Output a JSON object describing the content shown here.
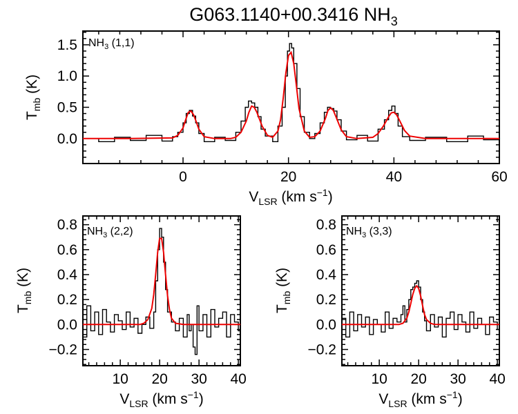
{
  "title": {
    "main": "G063.1140+00.3416 NH",
    "sub": "3"
  },
  "chart_data": [
    {
      "type": "line",
      "panel_label": {
        "main": "NH",
        "sub": "3",
        "rest": " (1,1)"
      },
      "xlabel": {
        "main": "V",
        "sub": "LSR",
        "rest": " (km s",
        "sup": "−1",
        "close": ")"
      },
      "ylabel": {
        "main": "T",
        "sub": "mb",
        "rest": " (K)"
      },
      "xlim": [
        -19,
        60
      ],
      "ylim": [
        -0.4,
        1.72
      ],
      "xticks": [
        0,
        20,
        40,
        60
      ],
      "xtick_labels": [
        "0",
        "20",
        "40",
        "60"
      ],
      "yticks": [
        0.0,
        0.5,
        1.0,
        1.5
      ],
      "ytick_labels": [
        "0.0",
        "0.5",
        "1.0",
        "1.5"
      ],
      "series": [
        {
          "kind": "observed-step",
          "color": "#000000",
          "x": [
            -19,
            -16,
            -13,
            -10,
            -7,
            -4,
            -2,
            -1,
            0,
            0.6,
            1.2,
            1.8,
            2.4,
            3,
            4,
            6,
            8,
            10,
            11,
            11.8,
            12.4,
            13,
            13.6,
            14.2,
            14.8,
            15.6,
            17,
            18,
            18.8,
            19.4,
            19.8,
            20.2,
            20.6,
            21,
            21.6,
            22.2,
            23,
            24,
            25,
            26,
            26.8,
            27.4,
            28,
            28.6,
            29.2,
            30,
            31,
            33,
            35,
            37,
            38.2,
            39,
            39.6,
            40.2,
            40.8,
            41.6,
            43,
            46,
            50,
            54,
            57,
            60
          ],
          "y": [
            0.0,
            -0.05,
            0.02,
            -0.03,
            0.05,
            -0.04,
            0.03,
            0.1,
            0.25,
            0.4,
            0.45,
            0.36,
            0.25,
            0.08,
            -0.05,
            0.02,
            -0.03,
            0.1,
            0.28,
            0.5,
            0.6,
            0.57,
            0.5,
            0.35,
            0.15,
            0.04,
            -0.05,
            0.2,
            0.5,
            1.0,
            1.4,
            1.52,
            1.45,
            1.2,
            0.8,
            0.35,
            0.1,
            0.0,
            0.08,
            0.25,
            0.42,
            0.5,
            0.48,
            0.44,
            0.3,
            0.12,
            -0.02,
            0.05,
            -0.04,
            0.15,
            0.3,
            0.45,
            0.52,
            0.4,
            0.2,
            0.03,
            -0.03,
            0.02,
            -0.05,
            0.04,
            -0.02,
            0.05
          ]
        },
        {
          "kind": "fit",
          "color": "#ee0000",
          "x": [
            -19,
            -10,
            -2,
            -1,
            0,
            0.5,
            1,
            1.5,
            2,
            2.5,
            3,
            4,
            6,
            9,
            10,
            11,
            12,
            12.5,
            13,
            13.5,
            14,
            15,
            16,
            17,
            18,
            18.5,
            19,
            19.5,
            20,
            20.5,
            21,
            21.5,
            22,
            23,
            24,
            25,
            26,
            27,
            27.5,
            28,
            28.5,
            29,
            30,
            31,
            33,
            36,
            37,
            38,
            39,
            39.5,
            40,
            40.5,
            41,
            42,
            43,
            46,
            60
          ],
          "y": [
            0.0,
            0.0,
            0.01,
            0.05,
            0.17,
            0.3,
            0.42,
            0.44,
            0.38,
            0.27,
            0.15,
            0.03,
            0.0,
            0.0,
            0.02,
            0.1,
            0.28,
            0.42,
            0.52,
            0.5,
            0.42,
            0.2,
            0.05,
            0.02,
            0.12,
            0.3,
            0.65,
            1.05,
            1.33,
            1.38,
            1.2,
            0.85,
            0.48,
            0.12,
            0.02,
            0.03,
            0.12,
            0.32,
            0.45,
            0.49,
            0.45,
            0.35,
            0.14,
            0.03,
            0.0,
            0.02,
            0.08,
            0.2,
            0.35,
            0.41,
            0.42,
            0.38,
            0.3,
            0.13,
            0.04,
            0.0,
            0.0
          ]
        }
      ]
    },
    {
      "type": "line",
      "panel_label": {
        "main": "NH",
        "sub": "3",
        "rest": " (2,2)"
      },
      "xlabel": {
        "main": "V",
        "sub": "LSR",
        "rest": " (km s",
        "sup": "−1",
        "close": ")"
      },
      "ylabel": {
        "main": "T",
        "sub": "mb",
        "rest": " (K)"
      },
      "xlim": [
        0.5,
        40.5
      ],
      "ylim": [
        -0.33,
        0.87
      ],
      "xticks": [
        10,
        20,
        30,
        40
      ],
      "xtick_labels": [
        "10",
        "20",
        "30",
        "40"
      ],
      "yticks": [
        -0.2,
        0.0,
        0.2,
        0.4,
        0.6,
        0.8
      ],
      "ytick_labels": [
        "−0.2",
        "0.0",
        "0.2",
        "0.4",
        "0.6",
        "0.8"
      ],
      "series": [
        {
          "kind": "observed-step",
          "color": "#000000",
          "x": [
            0.5,
            1.5,
            2.5,
            3.5,
            4.5,
            5.5,
            6.5,
            7.5,
            8.5,
            9.5,
            10.5,
            11.5,
            12.5,
            13.5,
            14.5,
            15.5,
            16.5,
            17.5,
            18.5,
            19,
            19.5,
            20,
            20.5,
            21,
            21.5,
            22,
            23,
            24,
            25,
            26,
            27,
            27.5,
            28,
            28.5,
            29,
            29.5,
            30,
            31,
            32,
            33,
            34,
            35,
            36,
            37,
            38,
            39,
            40
          ],
          "y": [
            -0.1,
            0.15,
            -0.05,
            0.1,
            -0.08,
            0.12,
            0.02,
            -0.06,
            0.08,
            0.03,
            -0.04,
            0.1,
            -0.02,
            0.05,
            -0.07,
            0.0,
            0.06,
            -0.03,
            0.1,
            0.35,
            0.6,
            0.77,
            0.7,
            0.5,
            0.28,
            0.1,
            0.02,
            -0.05,
            0.05,
            -0.1,
            0.08,
            -0.05,
            0.0,
            -0.18,
            -0.24,
            0.15,
            -0.05,
            0.08,
            -0.1,
            0.12,
            -0.02,
            0.05,
            0.1,
            -0.1,
            0.08,
            0.02,
            -0.05
          ]
        },
        {
          "kind": "fit",
          "color": "#ee0000",
          "x": [
            0.5,
            15,
            16,
            17,
            18,
            18.5,
            19,
            19.5,
            20,
            20.5,
            21,
            21.5,
            22,
            22.5,
            23,
            24,
            26,
            40.5
          ],
          "y": [
            0.0,
            0.0,
            0.01,
            0.04,
            0.13,
            0.24,
            0.4,
            0.58,
            0.69,
            0.69,
            0.58,
            0.4,
            0.23,
            0.12,
            0.05,
            0.01,
            0.0,
            0.0
          ]
        }
      ]
    },
    {
      "type": "line",
      "panel_label": {
        "main": "NH",
        "sub": "3",
        "rest": " (3,3)"
      },
      "xlabel": {
        "main": "V",
        "sub": "LSR",
        "rest": " (km s",
        "sup": "−1",
        "close": ")"
      },
      "ylabel": {
        "main": "T",
        "sub": "mb",
        "rest": " (K)"
      },
      "xlim": [
        0.5,
        40.5
      ],
      "ylim": [
        -0.33,
        0.87
      ],
      "xticks": [
        10,
        20,
        30,
        40
      ],
      "xtick_labels": [
        "10",
        "20",
        "30",
        "40"
      ],
      "yticks": [
        -0.2,
        0.0,
        0.2,
        0.4,
        0.6,
        0.8
      ],
      "ytick_labels": [
        "−0.2",
        "0.0",
        "0.2",
        "0.4",
        "0.6",
        "0.8"
      ],
      "series": [
        {
          "kind": "observed-step",
          "color": "#000000",
          "x": [
            0.5,
            1.5,
            2.5,
            3.5,
            4.5,
            5.5,
            6.5,
            7.5,
            8.5,
            9.5,
            10.5,
            11.5,
            12.5,
            13.5,
            14.5,
            15.5,
            16,
            16.5,
            17,
            17.5,
            18,
            18.5,
            19,
            19.5,
            20,
            20.5,
            21,
            21.5,
            22,
            23,
            24,
            25,
            26,
            27,
            28,
            29,
            30,
            31,
            32,
            33,
            34,
            35,
            36,
            37,
            38,
            39,
            40
          ],
          "y": [
            0.05,
            -0.1,
            0.1,
            -0.05,
            0.08,
            -0.02,
            0.06,
            -0.08,
            0.04,
            0.0,
            -0.06,
            0.1,
            -0.03,
            0.05,
            0.02,
            0.08,
            0.15,
            0.02,
            0.12,
            0.2,
            0.28,
            0.3,
            0.33,
            0.35,
            0.3,
            0.2,
            0.1,
            0.03,
            -0.05,
            0.08,
            -0.02,
            0.06,
            -0.1,
            0.05,
            0.1,
            -0.04,
            0.08,
            0.02,
            -0.06,
            0.1,
            -0.03,
            0.05,
            0.0,
            -0.08,
            0.06,
            0.02,
            -0.04
          ]
        },
        {
          "kind": "fit",
          "color": "#ee0000",
          "x": [
            0.5,
            15,
            16,
            17,
            17.5,
            18,
            18.5,
            19,
            19.5,
            20,
            20.5,
            21,
            21.5,
            22,
            23,
            24,
            40.5
          ],
          "y": [
            0.0,
            0.0,
            0.01,
            0.05,
            0.1,
            0.17,
            0.24,
            0.29,
            0.31,
            0.29,
            0.23,
            0.15,
            0.08,
            0.04,
            0.01,
            0.0,
            0.0
          ]
        }
      ]
    }
  ]
}
